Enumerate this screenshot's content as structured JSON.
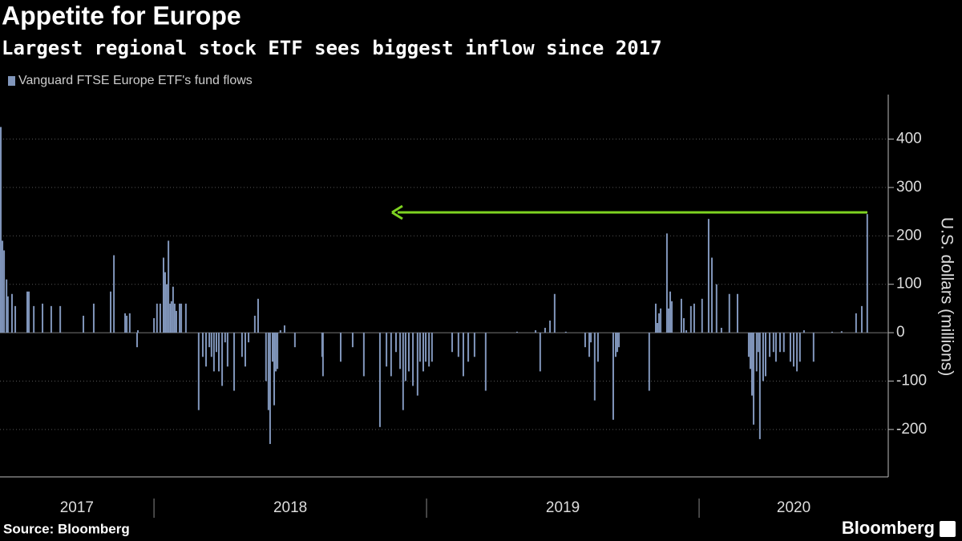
{
  "chart_data": {
    "type": "bar",
    "title": "Appetite for Europe",
    "subtitle": "Largest regional stock ETF sees biggest inflow since 2017",
    "ylabel": "U.S. dollars (millions)",
    "series": [
      {
        "name": "Vanguard FTSE Europe ETF's fund flows",
        "color": "#8196bb",
        "values": [
          425,
          190,
          170,
          110,
          75,
          80,
          55,
          85,
          85,
          55,
          60,
          55,
          55,
          35,
          60,
          85,
          160,
          40,
          35,
          40,
          -30,
          5,
          30,
          60,
          60,
          155,
          125,
          100,
          190,
          60,
          65,
          95,
          60,
          45,
          60,
          60,
          60,
          -160,
          -50,
          -70,
          -30,
          -50,
          -80,
          -40,
          -80,
          -110,
          -20,
          -70,
          -120,
          -50,
          -70,
          -20,
          35,
          70,
          -100,
          -160,
          -230,
          -60,
          -150,
          -80,
          -75,
          5,
          15,
          -30,
          -50,
          -90,
          -60,
          -30,
          -90,
          -195,
          -70,
          -90,
          -40,
          -75,
          -160,
          -100,
          -80,
          -110,
          -130,
          -60,
          -80,
          -60,
          -70,
          -60,
          -40,
          -50,
          -90,
          -60,
          -50,
          -120,
          2,
          5,
          -80,
          10,
          25,
          80,
          2,
          -30,
          -50,
          -20,
          -140,
          -60,
          -180,
          -50,
          -40,
          -30,
          -120,
          60,
          20,
          40,
          50,
          205,
          50,
          85,
          65,
          70,
          30,
          5,
          55,
          60,
          70,
          235,
          155,
          100,
          10,
          80,
          80,
          -50,
          -75,
          -130,
          -190,
          -80,
          -40,
          -220,
          -100,
          -90,
          -50,
          -40,
          -60,
          -40,
          -40,
          -60,
          -70,
          -80,
          -60,
          5,
          -60,
          2,
          3,
          40,
          55,
          245
        ]
      }
    ],
    "x": [
      2017.438,
      2017.444,
      2017.45,
      2017.459,
      2017.464,
      2017.479,
      2017.491,
      2017.535,
      2017.541,
      2017.559,
      2017.591,
      2017.623,
      2017.656,
      2017.741,
      2017.779,
      2017.841,
      2017.853,
      2017.894,
      2017.9,
      2017.911,
      2017.938,
      2017.941,
      2018.0,
      2018.011,
      2018.023,
      2018.035,
      2018.041,
      2018.047,
      2018.053,
      2018.059,
      2018.064,
      2018.07,
      2018.076,
      2018.082,
      2018.094,
      2018.1,
      2018.117,
      2018.164,
      2018.179,
      2018.191,
      2018.203,
      2018.211,
      2018.22,
      2018.229,
      2018.238,
      2018.25,
      2018.261,
      2018.27,
      2018.294,
      2018.323,
      2018.335,
      2018.347,
      2018.37,
      2018.382,
      2018.411,
      2018.42,
      2018.426,
      2018.435,
      2018.441,
      2018.447,
      2018.453,
      2018.464,
      2018.479,
      2018.517,
      2018.617,
      2018.62,
      2018.685,
      2018.729,
      2018.77,
      2018.829,
      2018.853,
      2018.87,
      2018.888,
      2018.903,
      2018.914,
      2018.923,
      2018.935,
      2018.95,
      2018.967,
      2018.976,
      2018.988,
      2018.997,
      2019.009,
      2019.02,
      2019.094,
      2019.117,
      2019.135,
      2019.153,
      2019.176,
      2019.217,
      2019.332,
      2019.4,
      2019.417,
      2019.435,
      2019.453,
      2019.47,
      2019.511,
      2019.582,
      2019.597,
      2019.603,
      2019.617,
      2019.629,
      2019.685,
      2019.694,
      2019.7,
      2019.706,
      2019.817,
      2019.841,
      2019.847,
      2019.853,
      2019.859,
      2019.882,
      2019.888,
      2019.894,
      2019.9,
      2019.935,
      2019.944,
      2019.953,
      2019.97,
      2019.982,
      2020.011,
      2020.035,
      2020.047,
      2020.064,
      2020.082,
      2020.111,
      2020.141,
      2020.182,
      2020.188,
      2020.194,
      2020.2,
      2020.211,
      2020.217,
      2020.223,
      2020.235,
      2020.244,
      2020.259,
      2020.273,
      2020.282,
      2020.297,
      2020.311,
      2020.335,
      2020.347,
      2020.359,
      2020.37,
      2020.385,
      2020.42,
      2020.488,
      2020.523,
      2020.576,
      2020.597,
      2020.617
    ],
    "xlim": [
      2017.435,
      2020.694
    ],
    "xticks": [
      {
        "value": 2017.717,
        "label": "2017"
      },
      {
        "value": 2018.5,
        "label": "2018"
      },
      {
        "value": 2019.5,
        "label": "2019"
      },
      {
        "value": 2020.347,
        "label": "2020"
      }
    ],
    "year_dividers": [
      2018,
      2019,
      2020
    ],
    "ylim": [
      -298,
      492
    ],
    "yticks": [
      -200,
      -100,
      0,
      100,
      200,
      300,
      400
    ],
    "grid": true
  },
  "source": "Source: Bloomberg",
  "logo": "Bloomberg"
}
